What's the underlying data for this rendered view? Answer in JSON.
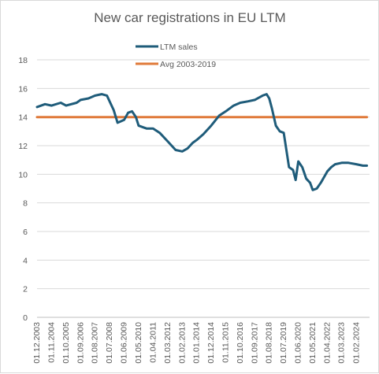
{
  "chart_data": {
    "type": "line",
    "title": "New car registrations in EU LTM",
    "xlabel": "",
    "ylabel": "",
    "ylim": [
      0,
      18
    ],
    "y_ticks": [
      "0",
      "2",
      "4",
      "6",
      "8",
      "10",
      "12",
      "14",
      "16",
      "18"
    ],
    "x_ticks": [
      "01.12.2003",
      "01.11.2004",
      "01.10.2005",
      "01.09.2006",
      "01.08.2007",
      "01.07.2008",
      "01.06.2009",
      "01.05.2010",
      "01.04.2011",
      "01.03.2012",
      "01.02.2013",
      "01.01.2014",
      "01.12.2014",
      "01.11.2015",
      "01.10.2016",
      "01.09.2017",
      "01.08.2018",
      "01.07.2019",
      "01.06.2020",
      "01.05.2021",
      "01.04.2022",
      "01.03.2023",
      "01.02.2024"
    ],
    "grid": "horizontal",
    "legend_position": "top",
    "series": [
      {
        "name": "LTM sales",
        "color": "#1f5c7a",
        "x": [
          "01.12.2003",
          "01.06.2004",
          "01.11.2004",
          "01.06.2005",
          "01.10.2005",
          "01.06.2006",
          "01.09.2006",
          "01.03.2007",
          "01.08.2007",
          "01.01.2008",
          "01.05.2008",
          "01.07.2008",
          "01.10.2008",
          "01.01.2009",
          "01.06.2009",
          "01.09.2009",
          "01.12.2009",
          "01.03.2010",
          "01.05.2010",
          "01.08.2010",
          "01.11.2010",
          "01.04.2011",
          "01.09.2011",
          "01.03.2012",
          "01.09.2012",
          "01.02.2013",
          "01.06.2013",
          "01.10.2013",
          "01.01.2014",
          "01.06.2014",
          "01.12.2014",
          "01.06.2015",
          "01.11.2015",
          "01.05.2016",
          "01.10.2016",
          "01.04.2017",
          "01.09.2017",
          "01.03.2018",
          "01.06.2018",
          "01.08.2018",
          "01.10.2018",
          "01.01.2019",
          "01.04.2019",
          "01.07.2019",
          "01.11.2019",
          "01.02.2020",
          "01.04.2020",
          "01.06.2020",
          "01.09.2020",
          "01.12.2020",
          "01.03.2021",
          "01.05.2021",
          "01.08.2021",
          "01.11.2021",
          "01.04.2022",
          "01.07.2022",
          "01.10.2022",
          "01.03.2023",
          "01.08.2023",
          "01.02.2024",
          "01.07.2024",
          "01.10.2024"
        ],
        "values": [
          14.7,
          14.9,
          14.8,
          15.0,
          14.8,
          15.0,
          15.2,
          15.3,
          15.5,
          15.6,
          15.5,
          15.1,
          14.5,
          13.6,
          13.8,
          14.3,
          14.4,
          14.0,
          13.4,
          13.3,
          13.2,
          13.2,
          12.9,
          12.3,
          11.7,
          11.6,
          11.8,
          12.2,
          12.4,
          12.8,
          13.4,
          14.1,
          14.4,
          14.8,
          15.0,
          15.1,
          15.2,
          15.5,
          15.6,
          15.3,
          14.6,
          13.4,
          13.0,
          12.9,
          10.5,
          10.3,
          9.6,
          10.9,
          10.5,
          9.7,
          9.4,
          8.9,
          9.0,
          9.4,
          10.2,
          10.5,
          10.7,
          10.8,
          10.8,
          10.7,
          10.6,
          10.6
        ]
      },
      {
        "name": "Avg 2003-2019",
        "color": "#e07a3a",
        "x": [
          "01.12.2003",
          "01.10.2024"
        ],
        "values": [
          14.0,
          14.0
        ]
      }
    ]
  }
}
